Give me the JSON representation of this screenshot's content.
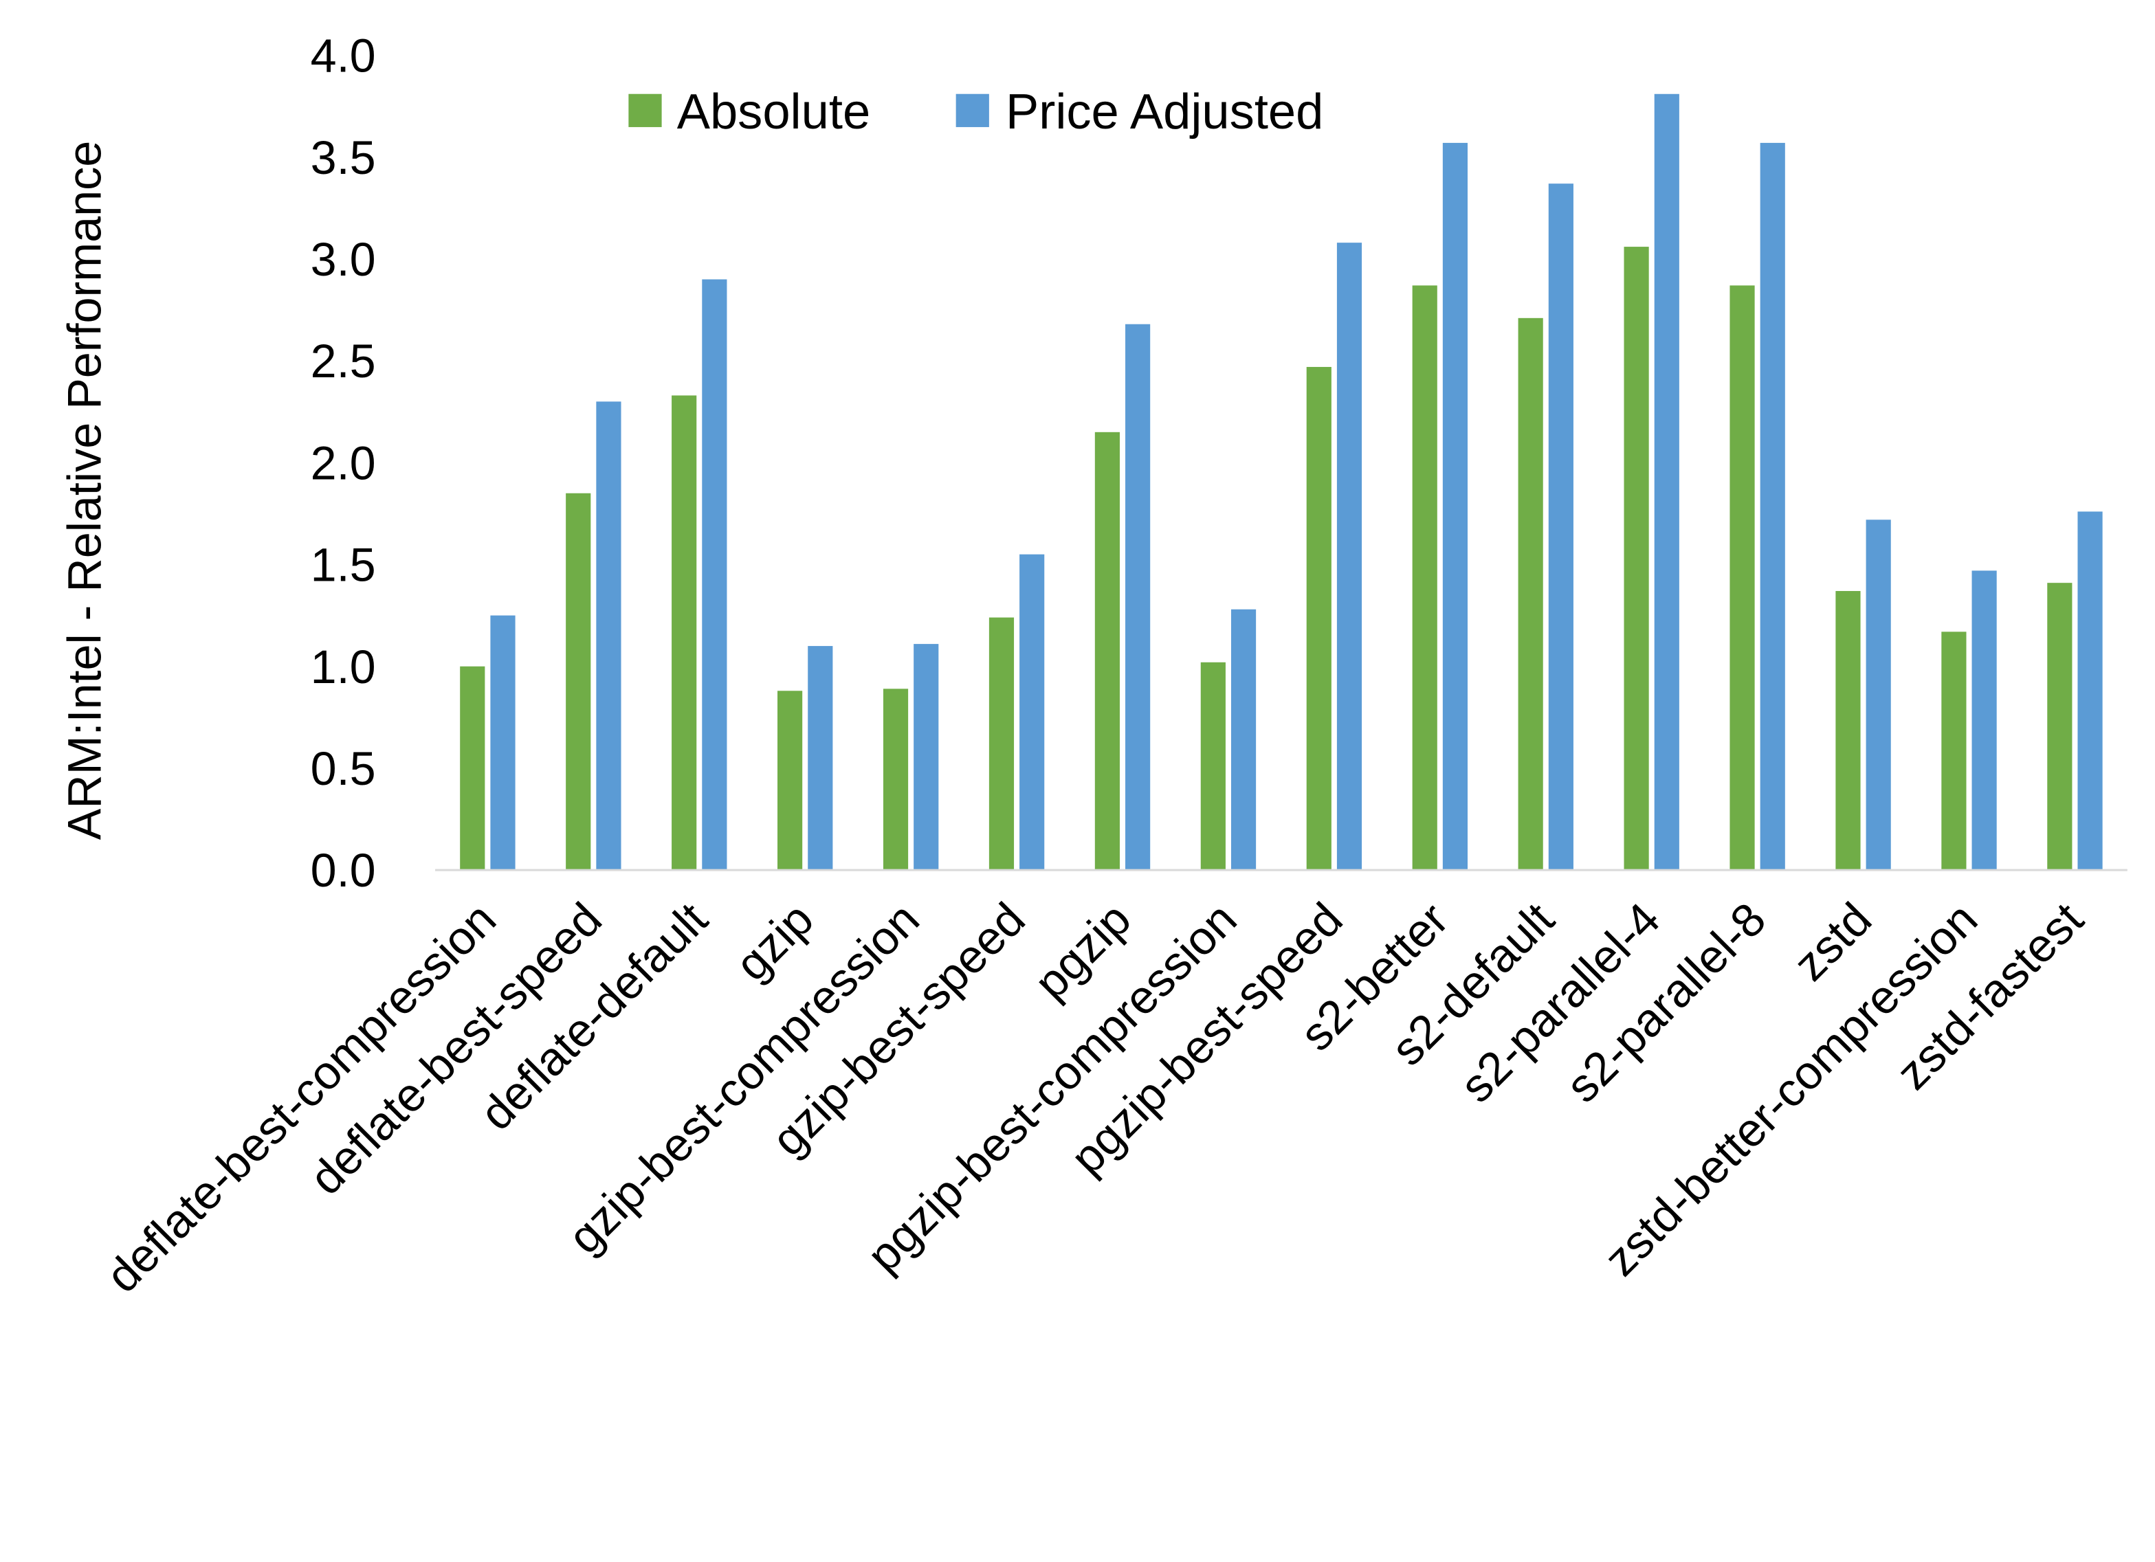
{
  "chart_data": {
    "type": "bar",
    "title": "",
    "xlabel": "",
    "ylabel": "ARM:Intel - Relative Performance",
    "ylim": [
      0,
      4.0
    ],
    "yticks": [
      "0.0",
      "0.5",
      "1.0",
      "1.5",
      "2.0",
      "2.5",
      "3.0",
      "3.5",
      "4.0"
    ],
    "grid": false,
    "legend_position": "top",
    "categories": [
      "deflate-best-compression",
      "deflate-best-speed",
      "deflate-default",
      "gzip",
      "gzip-best-compression",
      "gzip-best-speed",
      "pgzip",
      "pgzip-best-compression",
      "pgzip-best-speed",
      "s2-better",
      "s2-default",
      "s2-parallel-4",
      "s2-parallel-8",
      "zstd",
      "zstd-better-compression",
      "zstd-fastest"
    ],
    "series": [
      {
        "name": "Absolute",
        "color": "#70AD47",
        "values": [
          1.0,
          1.85,
          2.33,
          0.88,
          0.89,
          1.24,
          2.15,
          1.02,
          2.47,
          2.87,
          2.71,
          3.06,
          2.87,
          1.37,
          1.17,
          1.41
        ]
      },
      {
        "name": "Price Adjusted",
        "color": "#5B9BD5",
        "values": [
          1.25,
          2.3,
          2.9,
          1.1,
          1.11,
          1.55,
          2.68,
          1.28,
          3.08,
          3.57,
          3.37,
          3.81,
          3.57,
          1.72,
          1.47,
          1.76
        ]
      }
    ]
  }
}
